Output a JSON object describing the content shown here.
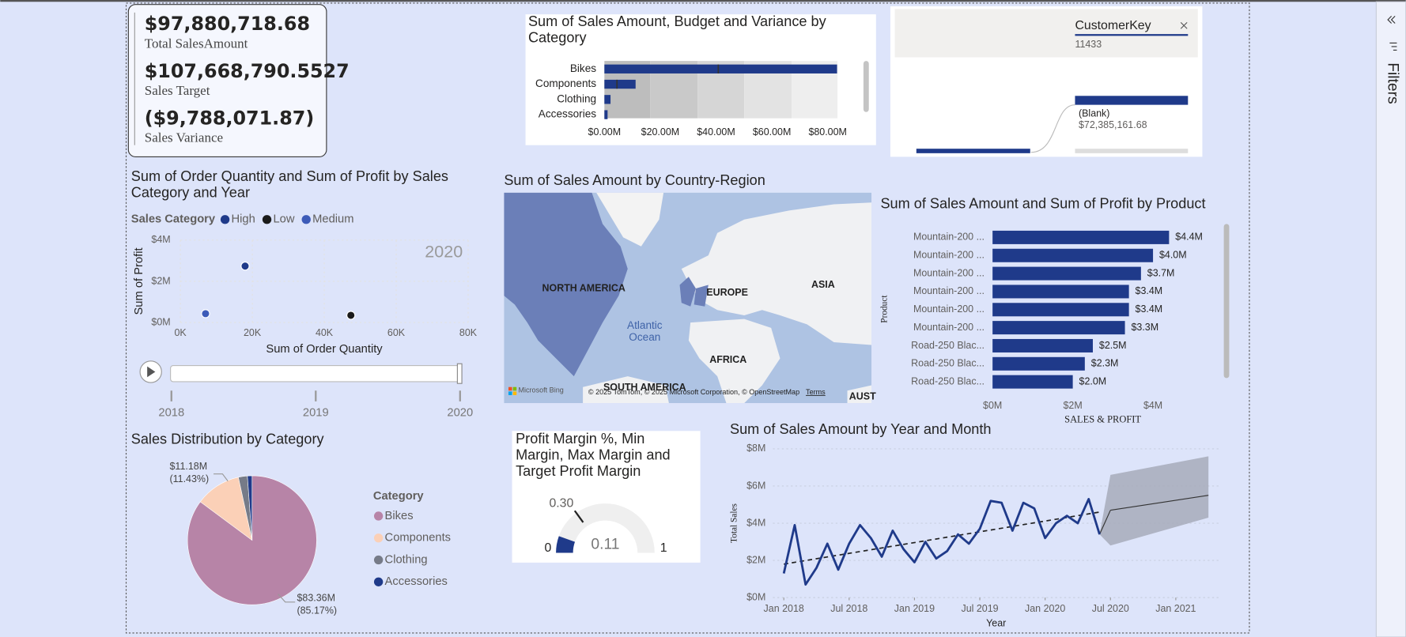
{
  "kpis": [
    {
      "value": "$97,880,718.68",
      "label": "Total SalesAmount"
    },
    {
      "value": "$107,668,790.5527",
      "label": "Sales Target"
    },
    {
      "value": "($9,788,071.87)",
      "label": "Sales Variance"
    }
  ],
  "decomposition_tree": {
    "field": "CustomerKey",
    "field_value": "11433",
    "node": "(Blank)",
    "node_value": "$72,385,161.68"
  },
  "map": {
    "title": "Sum of Sales Amount by Country-Region",
    "labels": [
      "NORTH AMERICA",
      "EUROPE",
      "ASIA",
      "Atlantic Ocean",
      "AFRICA",
      "SOUTH AMERICA",
      "AUST"
    ],
    "provider": "Microsoft Bing",
    "attribution": "© 2025 TomTom, © 2025 Microsoft Corporation, © OpenStreetMap",
    "terms": "Terms"
  },
  "filter_pane": {
    "title": "Filters"
  },
  "chart_data": [
    {
      "type": "bullet",
      "title": "Sum of Sales Amount, Budget and Variance by Category",
      "categories": [
        "Bikes",
        "Components",
        "Clothing",
        "Accessories"
      ],
      "values": [
        83360000,
        11180000,
        2200000,
        1140000
      ],
      "targets": [
        40800000,
        4500000,
        null,
        null
      ],
      "color": "#1f3a8a",
      "xlim": [
        0,
        83500000
      ],
      "xticks": [
        {
          "value": 0,
          "label": "$0.00M"
        },
        {
          "value": 20000000,
          "label": "$20.00M"
        },
        {
          "value": 40000000,
          "label": "$40.00M"
        },
        {
          "value": 60000000,
          "label": "$60.00M"
        },
        {
          "value": 80000000,
          "label": "$80.00M"
        }
      ]
    },
    {
      "type": "scatter",
      "title": "Sum of Order Quantity and Sum of Profit by Sales Category and Year",
      "legend_title": "Sales Category",
      "series": [
        {
          "name": "High",
          "color": "#1f3a8a",
          "x": [
            18000
          ],
          "values": [
            2740000
          ]
        },
        {
          "name": "Low",
          "color": "#1a1a1a",
          "x": [
            47400
          ],
          "values": [
            350000
          ]
        },
        {
          "name": "Medium",
          "color": "#3d5bb8",
          "x": [
            7000
          ],
          "values": [
            430000
          ]
        }
      ],
      "xlabel": "Sum of Order Quantity",
      "ylabel": "Sum of Profit",
      "xlim": [
        0,
        80000
      ],
      "xticks": [
        {
          "value": 0,
          "label": "0K"
        },
        {
          "value": 20000,
          "label": "20K"
        },
        {
          "value": 40000,
          "label": "40K"
        },
        {
          "value": 60000,
          "label": "60K"
        },
        {
          "value": 80000,
          "label": "80K"
        }
      ],
      "ylim": [
        0,
        4000000
      ],
      "yticks": [
        {
          "value": 0,
          "label": "$0M"
        },
        {
          "value": 2000000,
          "label": "$2M"
        },
        {
          "value": 4000000,
          "label": "$4M"
        }
      ],
      "grid": true,
      "year": 2020,
      "play_axis": [
        2018,
        2019,
        2020
      ]
    },
    {
      "type": "hbar",
      "title": "Sum of Sales Amount and Sum of Profit by Product",
      "categories": [
        "Mountain-200 ...",
        "Mountain-200 ...",
        "Mountain-200 ...",
        "Mountain-200 ...",
        "Mountain-200 ...",
        "Mountain-200 ...",
        "Road-250 Blac...",
        "Road-250 Blac...",
        "Road-250 Blac..."
      ],
      "values": [
        4400000,
        4000000,
        3700000,
        3400000,
        3400000,
        3300000,
        2500000,
        2300000,
        2000000
      ],
      "value_labels": [
        "$4.4M",
        "$4.0M",
        "$3.7M",
        "$3.4M",
        "$3.4M",
        "$3.3M",
        "$2.5M",
        "$2.3M",
        "$2.0M"
      ],
      "color": "#1f3a8a",
      "xlabel": "SALES & PROFIT",
      "ylabel": "Product",
      "xlim": [
        0,
        5000000
      ],
      "xticks": [
        {
          "value": 0,
          "label": "$0M"
        },
        {
          "value": 2000000,
          "label": "$2M"
        },
        {
          "value": 4000000,
          "label": "$4M"
        }
      ]
    },
    {
      "type": "pie",
      "title": "Sales Distribution by Category",
      "legend_title": "Category",
      "categories": [
        "Bikes",
        "Components",
        "Clothing",
        "Accessories"
      ],
      "values": [
        83360000,
        11180000,
        2200000,
        1140000
      ],
      "value_labels": [
        "$83.36M (85.17%)",
        "$11.18M (11.43%)",
        null,
        null
      ],
      "colors": [
        "#b784a7",
        "#fbd0b7",
        "#767b88",
        "#1f3a8a"
      ]
    },
    {
      "type": "gauge",
      "title": "Profit Margin %, Min Margin, Max Margin and Target Profit Margin",
      "value": 0.11,
      "min": 0,
      "max": 1,
      "target": {
        "value": 0.3,
        "label": "0.30"
      },
      "color": "#1f3a8a"
    },
    {
      "type": "line",
      "title": "Sum of Sales Amount by Year and Month",
      "xlabel": "Year",
      "ylabel": "Total Sales",
      "color": "#1f3a8a",
      "x": [
        "2018-01",
        "2018-02",
        "2018-03",
        "2018-04",
        "2018-05",
        "2018-06",
        "2018-07",
        "2018-08",
        "2018-09",
        "2018-10",
        "2018-11",
        "2018-12",
        "2019-01",
        "2019-02",
        "2019-03",
        "2019-04",
        "2019-05",
        "2019-06",
        "2019-07",
        "2019-08",
        "2019-09",
        "2019-10",
        "2019-11",
        "2019-12",
        "2020-01",
        "2020-02",
        "2020-03",
        "2020-04",
        "2020-05",
        "2020-06"
      ],
      "values": [
        1300000,
        3900000,
        700000,
        1600000,
        2900000,
        1500000,
        2900000,
        3900000,
        3200000,
        2200000,
        3600000,
        2600000,
        1900000,
        3000000,
        2100000,
        2500000,
        3400000,
        2900000,
        3700000,
        5200000,
        5100000,
        3600000,
        5100000,
        4800000,
        3200000,
        4000000,
        4400000,
        4000000,
        5300000,
        3400000
      ],
      "trend": {
        "x": [
          "2018-01",
          "2020-06"
        ],
        "values": [
          1800000,
          4600000
        ]
      },
      "forecast": {
        "x": [
          "2020-07",
          "2021-04"
        ],
        "values": [
          4700000,
          5500000
        ],
        "upper": [
          6600000,
          7600000
        ],
        "lower": [
          2800000,
          4300000
        ]
      },
      "xlim": [
        "2017-12",
        "2021-05"
      ],
      "xticks": [
        {
          "value": "2018-01",
          "label": "Jan 2018"
        },
        {
          "value": "2018-07",
          "label": "Jul 2018"
        },
        {
          "value": "2019-01",
          "label": "Jan 2019"
        },
        {
          "value": "2019-07",
          "label": "Jul 2019"
        },
        {
          "value": "2020-01",
          "label": "Jan 2020"
        },
        {
          "value": "2020-07",
          "label": "Jul 2020"
        },
        {
          "value": "2021-01",
          "label": "Jan 2021"
        }
      ],
      "ylim": [
        0,
        8000000
      ],
      "yticks": [
        {
          "value": 0,
          "label": "$0M"
        },
        {
          "value": 2000000,
          "label": "$2M"
        },
        {
          "value": 4000000,
          "label": "$4M"
        },
        {
          "value": 6000000,
          "label": "$6M"
        },
        {
          "value": 8000000,
          "label": "$8M"
        }
      ],
      "grid": true
    }
  ]
}
